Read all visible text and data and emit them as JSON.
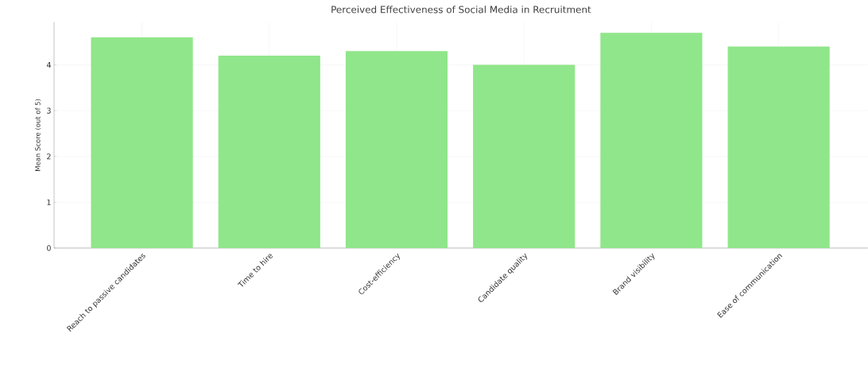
{
  "chart_data": {
    "type": "bar",
    "title": "Perceived Effectiveness of Social Media in Recruitment",
    "ylabel": "Mean Score (out of 5)",
    "categories": [
      "Reach to passive candidates",
      "Time to hire",
      "Cost-efficiency",
      "Candidate quality",
      "Brand visibility",
      "Ease of communication"
    ],
    "values": [
      4.6,
      4.2,
      4.3,
      4.0,
      4.7,
      4.4
    ],
    "color": "#90e68a",
    "ylim": [
      0,
      4.93
    ],
    "yticks": [
      0,
      1,
      2,
      3,
      4
    ],
    "grid": true
  }
}
